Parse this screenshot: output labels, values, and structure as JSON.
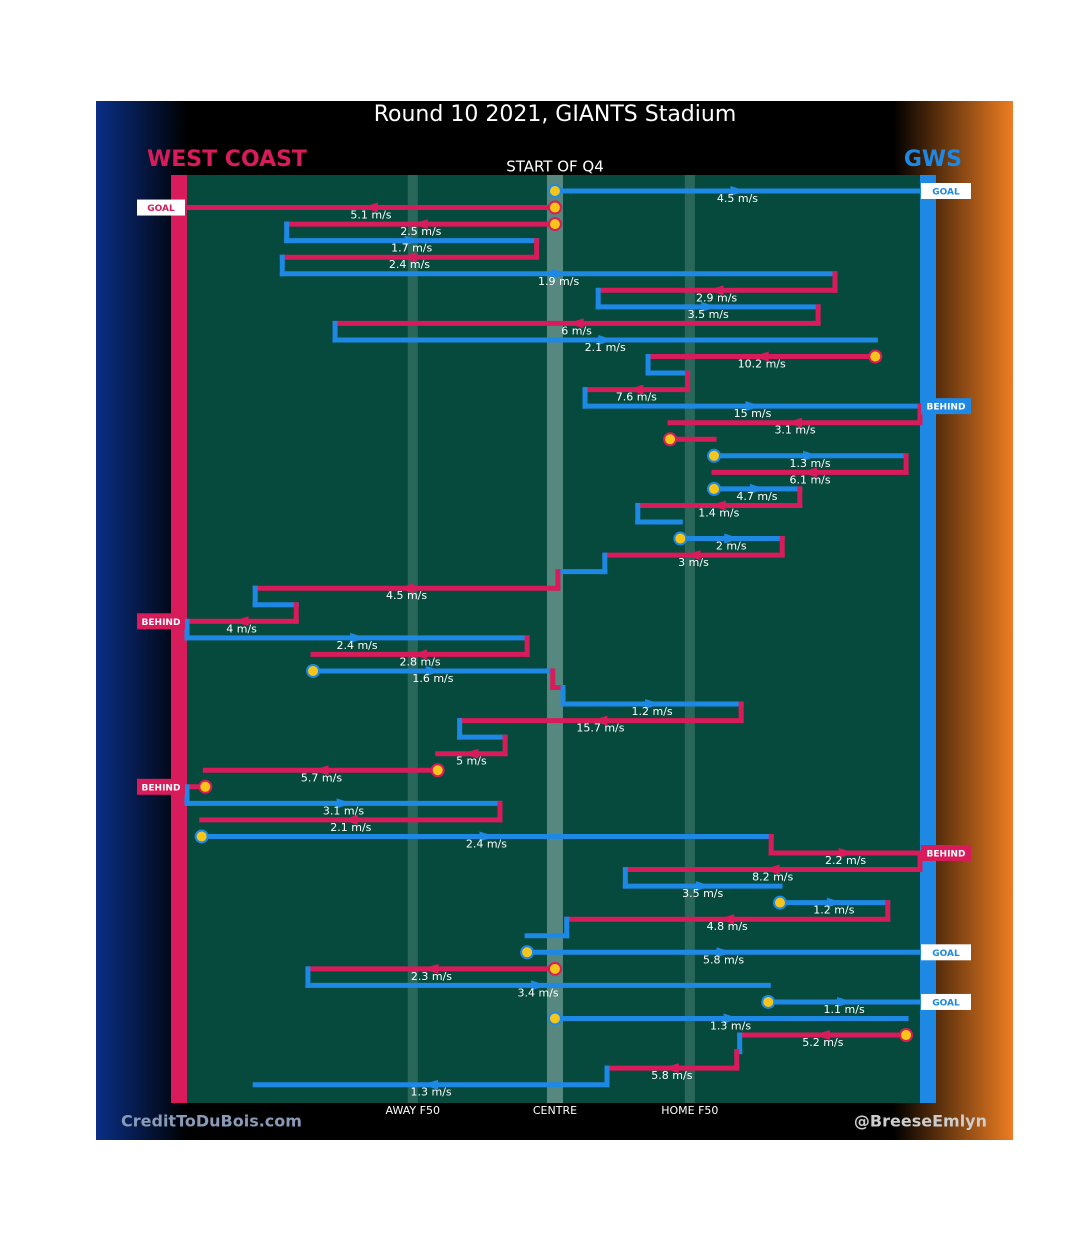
{
  "chart_data": {
    "type": "chain",
    "title": "Round 10 2021, GIANTS Stadium",
    "subtitle": "START OF Q4",
    "left_team": {
      "name": "WEST COAST",
      "color": "#d81b5a"
    },
    "right_team": {
      "name": "GWS",
      "color": "#1e88e5"
    },
    "xlim": [
      0,
      100
    ],
    "field_marks": [
      {
        "label": "AWAY F50",
        "value": 30.8
      },
      {
        "label": "CENTRE",
        "value": 50.2
      },
      {
        "label": "HOME F50",
        "value": 68.6
      }
    ],
    "credits": [
      "CreditToDuBois.com",
      "@BreeseEmlyn"
    ],
    "chain": [
      {
        "color": "#1e88e5",
        "from": 50.2,
        "to": 100,
        "label": "4.5 m/s",
        "start": true,
        "score": "GOAL"
      },
      {
        "color": "#d81b5a",
        "from": 50.2,
        "to": 0,
        "label": "5.1 m/s",
        "start": true,
        "score": "GOAL"
      },
      {
        "color": "#d81b5a",
        "from": 50.2,
        "to": 13.6,
        "label": "2.5 m/s",
        "start": true
      },
      {
        "color": "#1e88e5",
        "from": 13.6,
        "to": 47.7,
        "label": "1.7 m/s"
      },
      {
        "color": "#d81b5a",
        "from": 47.7,
        "to": 13.0,
        "label": "2.4 m/s"
      },
      {
        "color": "#1e88e5",
        "from": 13.0,
        "to": 88.4,
        "label": "1.9 m/s"
      },
      {
        "color": "#d81b5a",
        "from": 88.4,
        "to": 56.1,
        "label": "2.9 m/s"
      },
      {
        "color": "#1e88e5",
        "from": 56.1,
        "to": 86.1,
        "label": "3.5 m/s"
      },
      {
        "color": "#d81b5a",
        "from": 86.1,
        "to": 20.2,
        "label": "6 m/s"
      },
      {
        "color": "#1e88e5",
        "from": 20.2,
        "to": 93.9,
        "label": "2.1 m/s"
      },
      {
        "color": "#d81b5a",
        "from": 93.9,
        "to": 62.9,
        "label": "10.2 m/s",
        "start": true
      },
      {
        "color": "#1e88e5",
        "from": 62.9,
        "to": 68.3
      },
      {
        "color": "#d81b5a",
        "from": 68.3,
        "to": 54.3,
        "label": "7.6 m/s"
      },
      {
        "color": "#1e88e5",
        "from": 54.3,
        "to": 100,
        "label": "15 m/s",
        "score": "BEHIND"
      },
      {
        "color": "#d81b5a",
        "from": 100,
        "to": 65.9,
        "label": "3.1 m/s"
      },
      {
        "color": "#d81b5a",
        "from": 65.9,
        "to": 71.9,
        "start": true
      },
      {
        "color": "#1e88e5",
        "from": 71.9,
        "to": 98.1,
        "label": "1.3 m/s",
        "start": true
      },
      {
        "color": "#d81b5a",
        "from": 98.1,
        "to": 71.9,
        "label": "6.1 m/s"
      },
      {
        "color": "#1e88e5",
        "from": 71.9,
        "to": 83.6,
        "label": "4.7 m/s",
        "start": true
      },
      {
        "color": "#d81b5a",
        "from": 83.6,
        "to": 61.5,
        "label": "1.4 m/s"
      },
      {
        "color": "#1e88e5",
        "from": 61.5,
        "to": 67.3
      },
      {
        "color": "#1e88e5",
        "from": 67.3,
        "to": 81.2,
        "label": "2 m/s",
        "start": true
      },
      {
        "color": "#d81b5a",
        "from": 81.2,
        "to": 57.0,
        "label": "3 m/s"
      },
      {
        "color": "#1e88e5",
        "from": 57.0,
        "to": 50.6
      },
      {
        "color": "#d81b5a",
        "from": 50.6,
        "to": 9.3,
        "label": "4.5 m/s"
      },
      {
        "color": "#1e88e5",
        "from": 9.3,
        "to": 14.9
      },
      {
        "color": "#d81b5a",
        "from": 14.9,
        "to": 0,
        "label": "4 m/s",
        "score": "BEHIND"
      },
      {
        "color": "#1e88e5",
        "from": 0,
        "to": 46.4,
        "label": "2.4 m/s"
      },
      {
        "color": "#d81b5a",
        "from": 46.4,
        "to": 17.2,
        "label": "2.8 m/s"
      },
      {
        "color": "#1e88e5",
        "from": 17.2,
        "to": 49.9,
        "label": "1.6 m/s",
        "start": true
      },
      {
        "color": "#d81b5a",
        "from": 49.9,
        "to": 51.3
      },
      {
        "color": "#1e88e5",
        "from": 51.3,
        "to": 75.6,
        "label": "1.2 m/s"
      },
      {
        "color": "#d81b5a",
        "from": 75.6,
        "to": 37.2,
        "label": "15.7 m/s"
      },
      {
        "color": "#1e88e5",
        "from": 37.2,
        "to": 43.4
      },
      {
        "color": "#d81b5a",
        "from": 43.4,
        "to": 34.2,
        "label": "5 m/s"
      },
      {
        "color": "#d81b5a",
        "from": 34.2,
        "to": 2.5,
        "label": "5.7 m/s",
        "start": true
      },
      {
        "color": "#d81b5a",
        "from": 2.5,
        "to": 0,
        "start": true,
        "score": "BEHIND"
      },
      {
        "color": "#1e88e5",
        "from": 0,
        "to": 42.7,
        "label": "3.1 m/s"
      },
      {
        "color": "#d81b5a",
        "from": 42.7,
        "to": 2.0,
        "label": "2.1 m/s"
      },
      {
        "color": "#1e88e5",
        "from": 2.0,
        "to": 79.7,
        "label": "2.4 m/s",
        "start": true
      },
      {
        "color": "#d81b5a",
        "from": 79.7,
        "to": 100,
        "label": "2.2 m/s",
        "score": "BEHIND"
      },
      {
        "color": "#d81b5a",
        "from": 100,
        "to": 59.8,
        "label": "8.2 m/s"
      },
      {
        "color": "#1e88e5",
        "from": 59.8,
        "to": 80.9,
        "label": "3.5 m/s"
      },
      {
        "color": "#1e88e5",
        "from": 80.9,
        "to": 95.6,
        "label": "1.2 m/s",
        "start": true
      },
      {
        "color": "#d81b5a",
        "from": 95.6,
        "to": 51.8,
        "label": "4.8 m/s"
      },
      {
        "color": "#1e88e5",
        "from": 51.8,
        "to": 46.4
      },
      {
        "color": "#1e88e5",
        "from": 46.4,
        "to": 100,
        "label": "5.8 m/s",
        "start": true,
        "score": "GOAL"
      },
      {
        "color": "#d81b5a",
        "from": 50.2,
        "to": 16.5,
        "label": "2.3 m/s",
        "start": true
      },
      {
        "color": "#1e88e5",
        "from": 16.5,
        "to": 79.3,
        "label": "3.4 m/s"
      },
      {
        "color": "#1e88e5",
        "from": 79.3,
        "to": 100,
        "label": "1.1 m/s",
        "start": true,
        "score": "GOAL"
      },
      {
        "color": "#1e88e5",
        "from": 50.2,
        "to": 98.1,
        "label": "1.3 m/s",
        "start": true
      },
      {
        "color": "#d81b5a",
        "from": 98.1,
        "to": 75.4,
        "label": "5.2 m/s",
        "start": true
      },
      {
        "color": "#1e88e5",
        "from": 75.4,
        "to": 75.0
      },
      {
        "color": "#d81b5a",
        "from": 75.0,
        "to": 57.3,
        "label": "5.8 m/s"
      },
      {
        "color": "#1e88e5",
        "from": 57.3,
        "to": 9.3,
        "label": "1.3 m/s"
      }
    ]
  }
}
